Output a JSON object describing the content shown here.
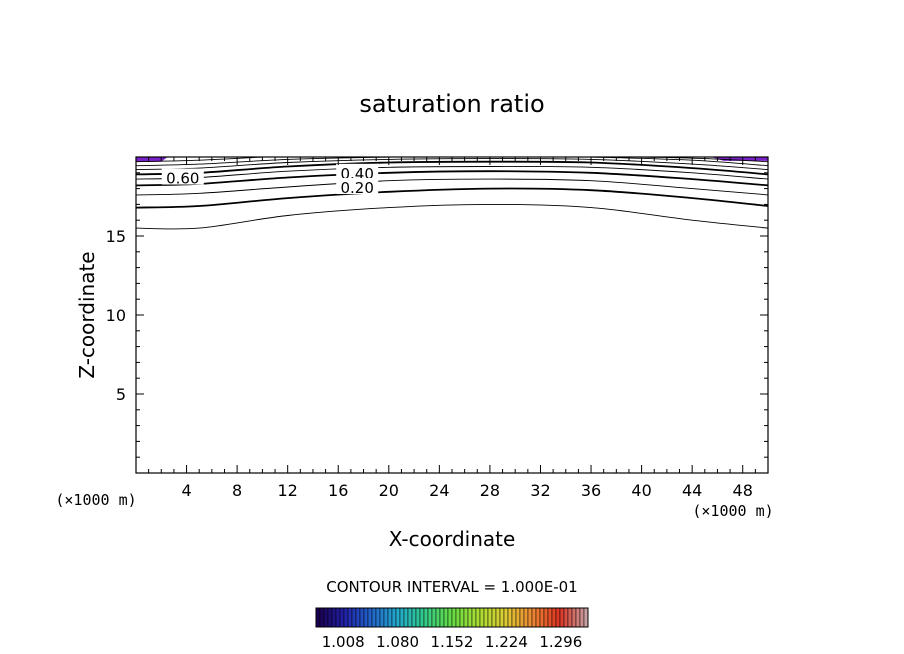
{
  "chart_data": {
    "type": "contour",
    "title": "saturation ratio",
    "xlabel": "X-coordinate",
    "ylabel": "Z-coordinate",
    "x_unit_left": "(×1000 m)",
    "x_unit_right": "(×1000 m)",
    "xlim": [
      0,
      50
    ],
    "ylim": [
      0,
      20
    ],
    "x_ticks": [
      4,
      8,
      12,
      16,
      20,
      24,
      28,
      32,
      36,
      40,
      44,
      48
    ],
    "y_ticks": [
      5,
      10,
      15
    ],
    "contour_interval_text": "CONTOUR INTERVAL = 1.000E-01",
    "contour_labels": [
      {
        "text": "0.60",
        "x": 3.7,
        "y": 18.7
      },
      {
        "text": "0.40",
        "x": 17.5,
        "y": 19.0
      },
      {
        "text": "0.20",
        "x": 17.5,
        "y": 18.1
      }
    ],
    "contours": [
      {
        "level": 0.1,
        "points": [
          [
            0,
            15.5
          ],
          [
            5,
            15.5
          ],
          [
            12,
            16.3
          ],
          [
            20,
            16.8
          ],
          [
            28,
            17.0
          ],
          [
            36,
            16.8
          ],
          [
            44,
            16.0
          ],
          [
            50,
            15.5
          ]
        ]
      },
      {
        "level": 0.2,
        "points": [
          [
            0,
            16.8
          ],
          [
            5,
            16.9
          ],
          [
            12,
            17.4
          ],
          [
            20,
            17.8
          ],
          [
            28,
            18.0
          ],
          [
            36,
            17.9
          ],
          [
            44,
            17.4
          ],
          [
            50,
            16.9
          ]
        ]
      },
      {
        "level": 0.3,
        "points": [
          [
            0,
            17.6
          ],
          [
            5,
            17.7
          ],
          [
            12,
            18.1
          ],
          [
            20,
            18.5
          ],
          [
            28,
            18.6
          ],
          [
            36,
            18.5
          ],
          [
            44,
            18.0
          ],
          [
            50,
            17.6
          ]
        ]
      },
      {
        "level": 0.4,
        "points": [
          [
            0,
            18.2
          ],
          [
            5,
            18.3
          ],
          [
            12,
            18.7
          ],
          [
            20,
            19.0
          ],
          [
            28,
            19.1
          ],
          [
            36,
            19.0
          ],
          [
            44,
            18.6
          ],
          [
            50,
            18.2
          ]
        ]
      },
      {
        "level": 0.5,
        "points": [
          [
            0,
            18.6
          ],
          [
            5,
            18.7
          ],
          [
            12,
            19.1
          ],
          [
            20,
            19.35
          ],
          [
            28,
            19.4
          ],
          [
            36,
            19.35
          ],
          [
            44,
            19.0
          ],
          [
            50,
            18.6
          ]
        ]
      },
      {
        "level": 0.6,
        "points": [
          [
            0,
            18.9
          ],
          [
            5,
            19.0
          ],
          [
            12,
            19.4
          ],
          [
            20,
            19.65
          ],
          [
            28,
            19.7
          ],
          [
            36,
            19.65
          ],
          [
            44,
            19.3
          ],
          [
            50,
            18.9
          ]
        ]
      },
      {
        "level": 0.7,
        "points": [
          [
            0,
            19.2
          ],
          [
            5,
            19.3
          ],
          [
            12,
            19.65
          ],
          [
            20,
            19.85
          ],
          [
            28,
            19.9
          ],
          [
            36,
            19.85
          ],
          [
            44,
            19.55
          ],
          [
            50,
            19.2
          ]
        ]
      },
      {
        "level": 0.8,
        "points": [
          [
            0,
            19.45
          ],
          [
            5,
            19.55
          ],
          [
            12,
            19.85
          ],
          [
            20,
            20.0
          ]
        ]
      },
      {
        "level": 0.8,
        "points": [
          [
            36,
            20.0
          ],
          [
            44,
            19.8
          ],
          [
            50,
            19.45
          ]
        ]
      },
      {
        "level": 0.9,
        "points": [
          [
            0,
            19.7
          ],
          [
            5,
            19.8
          ],
          [
            10,
            20.0
          ]
        ]
      },
      {
        "level": 0.9,
        "points": [
          [
            40,
            20.0
          ],
          [
            45,
            19.9
          ],
          [
            50,
            19.7
          ]
        ]
      }
    ],
    "shaded_regions": [
      {
        "color": "#7a22c8",
        "points": [
          [
            0,
            19.7
          ],
          [
            2,
            19.7
          ],
          [
            2.5,
            20
          ],
          [
            0,
            20
          ]
        ]
      },
      {
        "color": "#7a22c8",
        "points": [
          [
            45.5,
            20
          ],
          [
            46.5,
            19.75
          ],
          [
            50,
            19.75
          ],
          [
            50,
            20
          ]
        ]
      }
    ],
    "colorbar": {
      "tick_labels": [
        "1.008",
        "1.080",
        "1.152",
        "1.224",
        "1.296"
      ],
      "vmin": 0.972,
      "vmax": 1.332,
      "colors": [
        "#1a0050",
        "#2222aa",
        "#2266cc",
        "#22aacc",
        "#33cc88",
        "#66dd44",
        "#aadd33",
        "#ddcc33",
        "#ee8833",
        "#dd3322",
        "#c8a0a0"
      ]
    }
  }
}
